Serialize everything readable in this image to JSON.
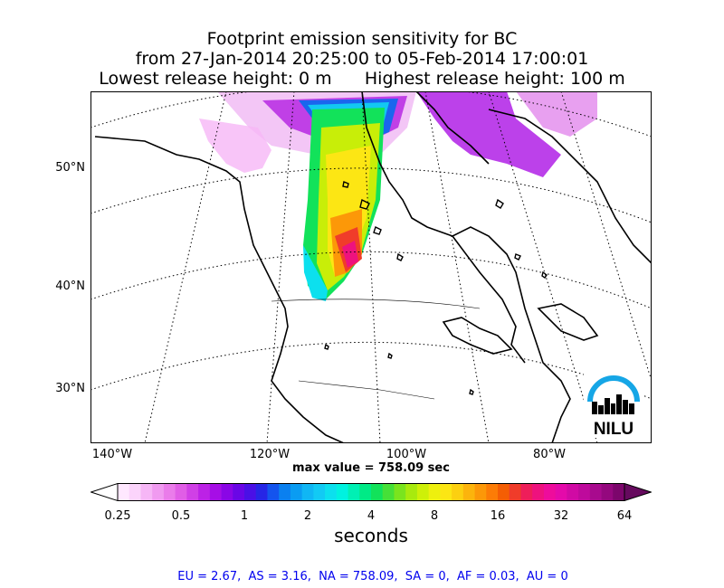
{
  "title": {
    "line1": "Footprint emission sensitivity for BC",
    "line2": "from 27-Jan-2014 20:25:00 to 05-Feb-2014 17:00:01",
    "line3": "Lowest release height: 0 m      Highest release height: 100 m"
  },
  "map": {
    "lat_labels": [
      "50°N",
      "40°N",
      "30°N"
    ],
    "lon_labels": [
      "140°W",
      "120°W",
      "100°W",
      "80°W"
    ],
    "logo_text": "NILU",
    "max_value_label": "max value = 758.09 sec"
  },
  "colorbar": {
    "ticks": [
      "0.25",
      "0.5",
      "1",
      "2",
      "4",
      "8",
      "16",
      "32",
      "64"
    ],
    "unit": "seconds",
    "colors": [
      "#ffe8ff",
      "#fbd4fb",
      "#f6b6f6",
      "#f09af0",
      "#ea7cea",
      "#e05ee6",
      "#d040e6",
      "#bc22e6",
      "#a60ee6",
      "#8a06e6",
      "#6a06e6",
      "#4a10e6",
      "#2626e6",
      "#1454ee",
      "#0a80f0",
      "#0a9cf2",
      "#10b6f4",
      "#12caf4",
      "#0ce0ee",
      "#00f2e0",
      "#00f0b4",
      "#00ea86",
      "#12e25a",
      "#46e038",
      "#7ae41e",
      "#a8ea0e",
      "#cef008",
      "#eef00e",
      "#fce614",
      "#fcd010",
      "#fcb40c",
      "#fc9808",
      "#fc7c06",
      "#f45e04",
      "#f03c2a",
      "#ee1e5a",
      "#ee127e",
      "#ee0c9c",
      "#e40aaa",
      "#d00aa4",
      "#be0a9c",
      "#a80a8e",
      "#94087e",
      "#7c066c"
    ]
  },
  "regions_text": "EU = 2.67,  AS = 3.16,  NA = 758.09,  SA = 0,  AF = 0.03,  AU = 0"
}
